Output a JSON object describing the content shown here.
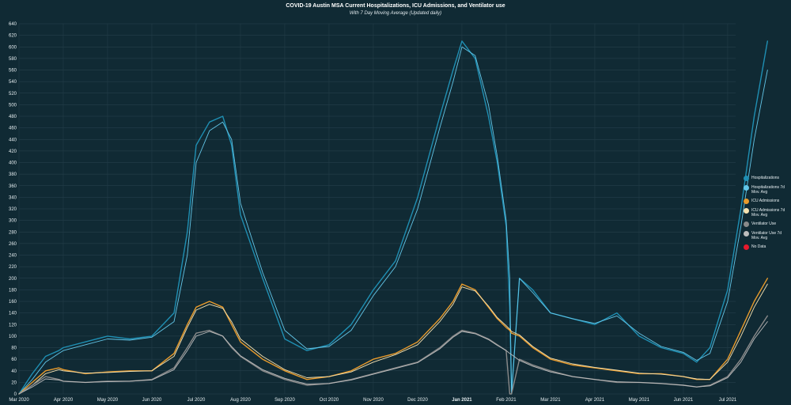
{
  "chart_data": {
    "type": "line",
    "title": "COVID-19 Austin MSA Current Hospitalizations, ICU Admissions, and Ventilator use",
    "subtitle": "With 7 Day Moving Average (Updated daily)",
    "x_ticks": [
      "Mar 2020",
      "Apr 2020",
      "May 2020",
      "Jun 2020",
      "Jul 2020",
      "Aug 2020",
      "Sep 2020",
      "Oct 2020",
      "Nov 2020",
      "Dec 2020",
      "Jan 2021",
      "Feb 2021",
      "Mar 2021",
      "Apr 2021",
      "May 2021",
      "Jun 2021",
      "Jul 2021"
    ],
    "y_ticks": [
      0,
      20,
      40,
      60,
      80,
      100,
      120,
      140,
      160,
      180,
      200,
      220,
      240,
      260,
      280,
      300,
      320,
      340,
      360,
      380,
      400,
      420,
      440,
      460,
      480,
      500,
      520,
      540,
      560,
      580,
      600,
      620,
      640
    ],
    "ylim": [
      0,
      640
    ],
    "grid": true,
    "legend_position": "right",
    "legend": [
      {
        "label": "Hospitalizations",
        "color": "#1f8fb3"
      },
      {
        "label": "Hospitalizations 7d Mov. Avg",
        "color": "#63c6e8"
      },
      {
        "label": "ICU Admissions",
        "color": "#e89b2c"
      },
      {
        "label": "ICU Admissions 7d Mov. Avg",
        "color": "#f6e2b0"
      },
      {
        "label": "Ventilator Use",
        "color": "#8a8a8a"
      },
      {
        "label": "Ventilator Use 7d Mov. Avg",
        "color": "#bdbdbd"
      },
      {
        "label": "No Data",
        "color": "#e8192c"
      }
    ],
    "series": [
      {
        "name": "Hospitalizations",
        "color": "#1f8fb3",
        "x": [
          0.0,
          0.3,
          0.6,
          0.9,
          1.0,
          1.5,
          2.0,
          2.5,
          3.0,
          3.5,
          3.8,
          4.0,
          4.3,
          4.6,
          4.8,
          5.0,
          5.5,
          6.0,
          6.5,
          7.0,
          7.5,
          8.0,
          8.5,
          9.0,
          9.5,
          9.8,
          10.0,
          10.3,
          10.6,
          10.8,
          11.0,
          11.08,
          11.12,
          11.3,
          11.6,
          12.0,
          12.5,
          13.0,
          13.5,
          14.0,
          14.5,
          15.0,
          15.3,
          15.6,
          16.0,
          16.3,
          16.6,
          16.9
        ],
        "y": [
          0,
          35,
          65,
          75,
          80,
          90,
          100,
          95,
          100,
          140,
          280,
          430,
          470,
          480,
          430,
          310,
          200,
          95,
          75,
          85,
          120,
          180,
          230,
          340,
          480,
          560,
          610,
          580,
          480,
          400,
          290,
          150,
          0,
          200,
          180,
          140,
          130,
          120,
          140,
          100,
          80,
          70,
          55,
          80,
          180,
          320,
          480,
          610
        ]
      },
      {
        "name": "Hospitalizations 7d Mov. Avg",
        "color": "#63c6e8",
        "x": [
          0.0,
          0.3,
          0.6,
          0.9,
          1.0,
          1.5,
          2.0,
          2.5,
          3.0,
          3.5,
          3.8,
          4.0,
          4.3,
          4.6,
          4.8,
          5.0,
          5.5,
          6.0,
          6.5,
          7.0,
          7.5,
          8.0,
          8.5,
          9.0,
          9.5,
          9.8,
          10.0,
          10.3,
          10.6,
          10.8,
          11.0,
          11.08,
          11.12,
          11.3,
          11.6,
          12.0,
          12.5,
          13.0,
          13.5,
          14.0,
          14.5,
          15.0,
          15.3,
          15.6,
          16.0,
          16.3,
          16.6,
          16.9
        ],
        "y": [
          0,
          25,
          55,
          70,
          75,
          85,
          95,
          93,
          98,
          125,
          240,
          400,
          455,
          470,
          440,
          330,
          210,
          110,
          78,
          82,
          110,
          170,
          220,
          320,
          460,
          540,
          600,
          585,
          500,
          410,
          300,
          200,
          0,
          200,
          175,
          140,
          130,
          122,
          135,
          105,
          82,
          72,
          58,
          70,
          160,
          290,
          440,
          560
        ]
      },
      {
        "name": "ICU Admissions",
        "color": "#e89b2c",
        "x": [
          0.0,
          0.3,
          0.6,
          0.9,
          1.0,
          1.5,
          2.0,
          2.5,
          3.0,
          3.5,
          3.8,
          4.0,
          4.3,
          4.6,
          4.8,
          5.0,
          5.5,
          6.0,
          6.5,
          7.0,
          7.5,
          8.0,
          8.5,
          9.0,
          9.5,
          9.8,
          10.0,
          10.3,
          10.6,
          10.8,
          11.0,
          11.08,
          11.12,
          11.3,
          11.6,
          12.0,
          12.5,
          13.0,
          13.5,
          14.0,
          14.5,
          15.0,
          15.3,
          15.6,
          16.0,
          16.3,
          16.6,
          16.9
        ],
        "y": [
          0,
          20,
          40,
          45,
          42,
          35,
          38,
          40,
          40,
          70,
          120,
          150,
          160,
          150,
          120,
          90,
          60,
          40,
          25,
          30,
          40,
          60,
          70,
          90,
          130,
          160,
          190,
          180,
          150,
          130,
          115,
          110,
          105,
          100,
          80,
          60,
          50,
          45,
          40,
          35,
          35,
          30,
          25,
          25,
          60,
          110,
          160,
          200
        ]
      },
      {
        "name": "ICU Admissions 7d Mov. Avg",
        "color": "#f6e2b0",
        "x": [
          0.0,
          0.3,
          0.6,
          0.9,
          1.0,
          1.5,
          2.0,
          2.5,
          3.0,
          3.5,
          3.8,
          4.0,
          4.3,
          4.6,
          4.8,
          5.0,
          5.5,
          6.0,
          6.5,
          7.0,
          7.5,
          8.0,
          8.5,
          9.0,
          9.5,
          9.8,
          10.0,
          10.3,
          10.6,
          10.8,
          11.0,
          11.08,
          11.12,
          11.3,
          11.6,
          12.0,
          12.5,
          13.0,
          13.5,
          14.0,
          14.5,
          15.0,
          15.3,
          15.6,
          16.0,
          16.3,
          16.6,
          16.9
        ],
        "y": [
          0,
          15,
          35,
          42,
          40,
          36,
          37,
          39,
          40,
          65,
          115,
          145,
          155,
          148,
          125,
          95,
          65,
          42,
          28,
          30,
          38,
          55,
          68,
          85,
          125,
          155,
          185,
          178,
          152,
          132,
          118,
          112,
          108,
          102,
          82,
          62,
          52,
          46,
          41,
          36,
          34,
          30,
          26,
          25,
          55,
          100,
          150,
          190
        ]
      },
      {
        "name": "Ventilator Use",
        "color": "#8a8a8a",
        "x": [
          0.0,
          0.3,
          0.6,
          0.9,
          1.0,
          1.5,
          2.0,
          2.5,
          3.0,
          3.5,
          3.8,
          4.0,
          4.3,
          4.6,
          4.8,
          5.0,
          5.5,
          6.0,
          6.5,
          7.0,
          7.5,
          8.0,
          8.5,
          9.0,
          9.5,
          9.8,
          10.0,
          10.3,
          10.6,
          10.8,
          11.0,
          11.08,
          11.12,
          11.3,
          11.6,
          12.0,
          12.5,
          13.0,
          13.5,
          14.0,
          14.5,
          15.0,
          15.3,
          15.6,
          16.0,
          16.3,
          16.6,
          16.9
        ],
        "y": [
          0,
          15,
          30,
          25,
          22,
          20,
          22,
          22,
          25,
          45,
          80,
          105,
          110,
          100,
          80,
          65,
          40,
          25,
          15,
          18,
          25,
          35,
          45,
          55,
          80,
          100,
          110,
          105,
          95,
          85,
          75,
          0,
          0,
          60,
          50,
          40,
          30,
          25,
          20,
          20,
          18,
          15,
          12,
          15,
          30,
          60,
          100,
          135
        ]
      },
      {
        "name": "Ventilator Use 7d Mov. Avg",
        "color": "#bdbdbd",
        "x": [
          0.0,
          0.3,
          0.6,
          0.9,
          1.0,
          1.5,
          2.0,
          2.5,
          3.0,
          3.5,
          3.8,
          4.0,
          4.3,
          4.6,
          4.8,
          5.0,
          5.5,
          6.0,
          6.5,
          7.0,
          7.5,
          8.0,
          8.5,
          9.0,
          9.5,
          9.8,
          10.0,
          10.3,
          10.6,
          10.8,
          11.0,
          11.08,
          11.12,
          11.3,
          11.6,
          12.0,
          12.5,
          13.0,
          13.5,
          14.0,
          14.5,
          15.0,
          15.3,
          15.6,
          16.0,
          16.3,
          16.6,
          16.9
        ],
        "y": [
          0,
          12,
          26,
          24,
          22,
          20,
          21,
          22,
          24,
          42,
          75,
          100,
          108,
          100,
          82,
          66,
          42,
          27,
          17,
          18,
          24,
          34,
          44,
          54,
          78,
          98,
          108,
          104,
          94,
          84,
          75,
          70,
          68,
          58,
          48,
          38,
          30,
          25,
          21,
          20,
          18,
          15,
          12,
          14,
          28,
          55,
          95,
          125
        ]
      }
    ]
  }
}
